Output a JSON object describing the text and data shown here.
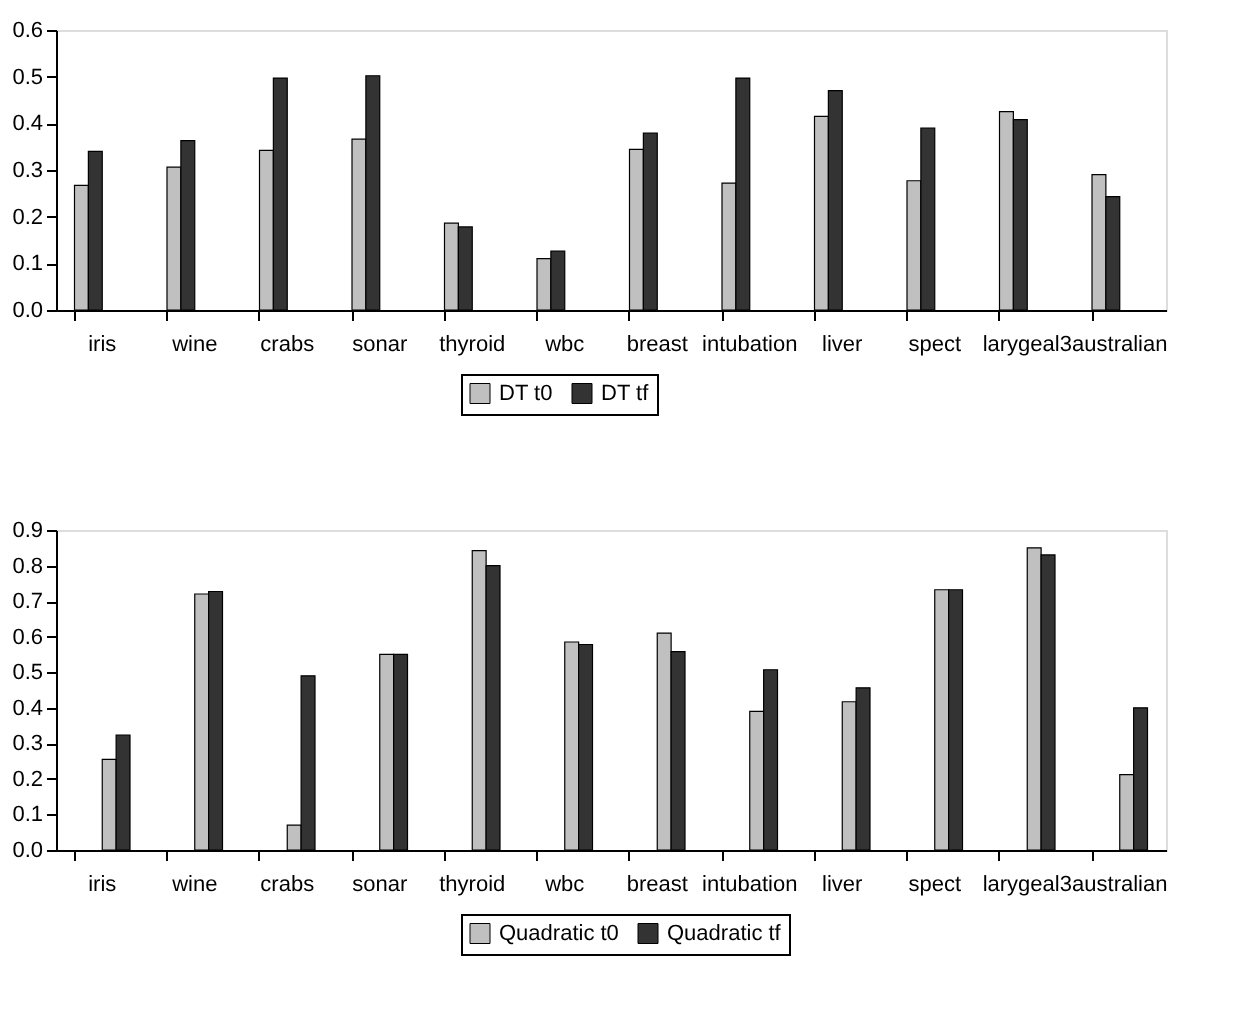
{
  "chart_data": [
    {
      "type": "bar",
      "categories": [
        "iris",
        "wine",
        "crabs",
        "sonar",
        "thyroid",
        "wbc",
        "breast",
        "intubation",
        "liver",
        "spect",
        "larygeal3",
        "australian"
      ],
      "series": [
        {
          "name": "DT t0",
          "color": "#c0c0c0",
          "values": [
            0.267,
            0.306,
            0.342,
            0.366,
            0.186,
            0.11,
            0.344,
            0.272,
            0.415,
            0.277,
            0.425,
            0.29
          ]
        },
        {
          "name": "DT tf",
          "color": "#333333",
          "values": [
            0.34,
            0.363,
            0.497,
            0.502,
            0.178,
            0.126,
            0.379,
            0.497,
            0.47,
            0.39,
            0.408,
            0.243
          ]
        }
      ],
      "ylim": [
        0,
        0.6
      ],
      "yticks": [
        {
          "value": 0,
          "label": "0.0"
        },
        {
          "value": 0.1,
          "label": "0.1"
        },
        {
          "value": 0.2,
          "label": "0.2"
        },
        {
          "value": 0.3,
          "label": "0.3"
        },
        {
          "value": 0.4,
          "label": "0.4"
        },
        {
          "value": 0.5,
          "label": "0.5"
        },
        {
          "value": 0.6,
          "label": "0.6"
        }
      ],
      "grid": false,
      "legend": "bottom"
    },
    {
      "type": "bar",
      "categories": [
        "iris",
        "wine",
        "crabs",
        "sonar",
        "thyroid",
        "wbc",
        "breast",
        "intubation",
        "liver",
        "spect",
        "larygeal3",
        "australian"
      ],
      "series": [
        {
          "name": "Quadratic t0",
          "color": "#c0c0c0",
          "values": [
            0.255,
            0.72,
            0.07,
            0.55,
            0.842,
            0.585,
            0.61,
            0.39,
            0.417,
            0.732,
            0.85,
            0.212
          ]
        },
        {
          "name": "Quadratic tf",
          "color": "#333333",
          "values": [
            0.323,
            0.727,
            0.49,
            0.55,
            0.8,
            0.578,
            0.558,
            0.507,
            0.456,
            0.732,
            0.83,
            0.4
          ]
        }
      ],
      "ylim": [
        0,
        0.9
      ],
      "yticks": [
        {
          "value": 0,
          "label": "0.0"
        },
        {
          "value": 0.1,
          "label": "0.1"
        },
        {
          "value": 0.2,
          "label": "0.2"
        },
        {
          "value": 0.3,
          "label": "0.3"
        },
        {
          "value": 0.4,
          "label": "0.4"
        },
        {
          "value": 0.5,
          "label": "0.5"
        },
        {
          "value": 0.6,
          "label": "0.6"
        },
        {
          "value": 0.7,
          "label": "0.7"
        },
        {
          "value": 0.8,
          "label": "0.8"
        },
        {
          "value": 0.9,
          "label": "0.9"
        }
      ],
      "grid": false,
      "legend": "bottom"
    }
  ]
}
